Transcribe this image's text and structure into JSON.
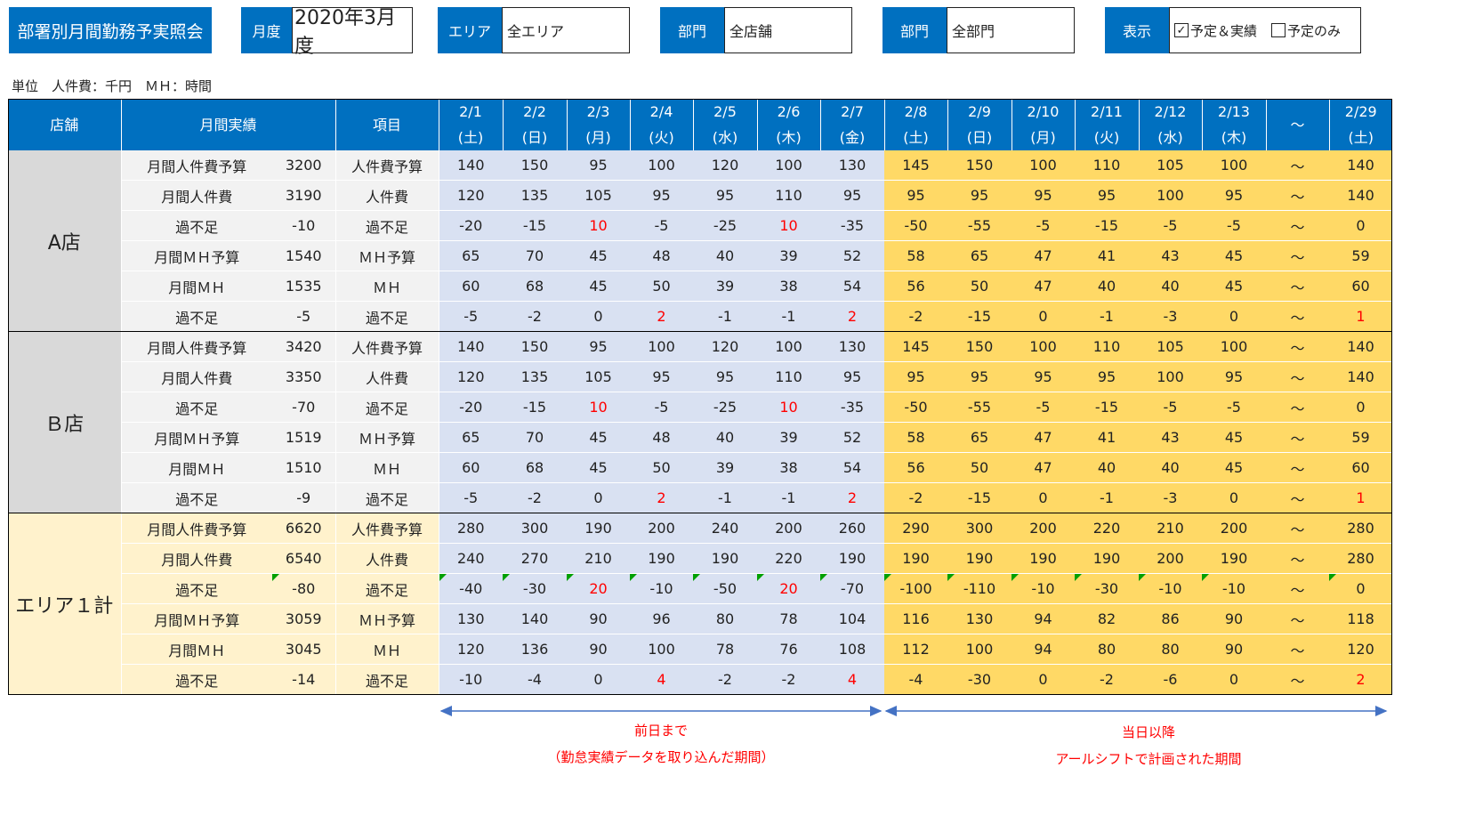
{
  "header": {
    "title": "部署別月間勤務予実照会",
    "month_label": "月度",
    "month_value": "2020年3月度",
    "area_label": "エリア",
    "area_value": "全エリア",
    "dept1_label": "部門",
    "dept1_value": "全店舗",
    "dept2_label": "部門",
    "dept2_value": "全部門",
    "display_label": "表示",
    "display_opt1": "予定＆実績",
    "display_opt1_mark": "✓",
    "display_opt2": "予定のみ"
  },
  "unit_text": "単位　人件費：千円　ＭＨ：時間",
  "table": {
    "col_store": "店舗",
    "col_monthly": "月間実績",
    "col_item": "項目",
    "dates": [
      {
        "d": "2/1",
        "w": "(土)"
      },
      {
        "d": "2/2",
        "w": "(日)"
      },
      {
        "d": "2/3",
        "w": "(月)"
      },
      {
        "d": "2/4",
        "w": "(火)"
      },
      {
        "d": "2/5",
        "w": "(水)"
      },
      {
        "d": "2/6",
        "w": "(木)"
      },
      {
        "d": "2/7",
        "w": "(金)"
      },
      {
        "d": "2/8",
        "w": "(土)"
      },
      {
        "d": "2/9",
        "w": "(日)"
      },
      {
        "d": "2/10",
        "w": "(月)"
      },
      {
        "d": "2/11",
        "w": "(火)"
      },
      {
        "d": "2/12",
        "w": "(水)"
      },
      {
        "d": "2/13",
        "w": "(木)"
      },
      {
        "d": "～",
        "w": ""
      },
      {
        "d": "2/29",
        "w": "(土)"
      }
    ],
    "groups": [
      {
        "store": "A店",
        "cls": "A",
        "rows": [
          {
            "label": "月間人件費予算",
            "total": "3200",
            "item": "人件費予算",
            "vals": [
              "140",
              "150",
              "95",
              "100",
              "120",
              "100",
              "130",
              "145",
              "150",
              "100",
              "110",
              "105",
              "100",
              "～",
              "140"
            ]
          },
          {
            "label": "月間人件費",
            "total": "3190",
            "item": "人件費",
            "vals": [
              "120",
              "135",
              "105",
              "95",
              "95",
              "110",
              "95",
              "95",
              "95",
              "95",
              "95",
              "100",
              "95",
              "～",
              "140"
            ]
          },
          {
            "label": "過不足",
            "total": "-10",
            "item": "過不足",
            "vals": [
              "-20",
              "-15",
              "10",
              "-5",
              "-25",
              "10",
              "-35",
              "-50",
              "-55",
              "-5",
              "-15",
              "-5",
              "-5",
              "～",
              "0"
            ]
          },
          {
            "label": "月間ＭＨ予算",
            "total": "1540",
            "item": "ＭＨ予算",
            "vals": [
              "65",
              "70",
              "45",
              "48",
              "40",
              "39",
              "52",
              "58",
              "65",
              "47",
              "41",
              "43",
              "45",
              "～",
              "59"
            ]
          },
          {
            "label": "月間ＭＨ",
            "total": "1535",
            "item": "ＭＨ",
            "vals": [
              "60",
              "68",
              "45",
              "50",
              "39",
              "38",
              "54",
              "56",
              "50",
              "47",
              "40",
              "40",
              "45",
              "～",
              "60"
            ]
          },
          {
            "label": "過不足",
            "total": "-5",
            "item": "過不足",
            "vals": [
              "-5",
              "-2",
              "0",
              "2",
              "-1",
              "-1",
              "2",
              "-2",
              "-15",
              "0",
              "-1",
              "-3",
              "0",
              "～",
              "1"
            ]
          }
        ]
      },
      {
        "store": "Ｂ店",
        "cls": "B",
        "rows": [
          {
            "label": "月間人件費予算",
            "total": "3420",
            "item": "人件費予算",
            "vals": [
              "140",
              "150",
              "95",
              "100",
              "120",
              "100",
              "130",
              "145",
              "150",
              "100",
              "110",
              "105",
              "100",
              "～",
              "140"
            ]
          },
          {
            "label": "月間人件費",
            "total": "3350",
            "item": "人件費",
            "vals": [
              "120",
              "135",
              "105",
              "95",
              "95",
              "110",
              "95",
              "95",
              "95",
              "95",
              "95",
              "100",
              "95",
              "～",
              "140"
            ]
          },
          {
            "label": "過不足",
            "total": "-70",
            "item": "過不足",
            "vals": [
              "-20",
              "-15",
              "10",
              "-5",
              "-25",
              "10",
              "-35",
              "-50",
              "-55",
              "-5",
              "-15",
              "-5",
              "-5",
              "～",
              "0"
            ]
          },
          {
            "label": "月間ＭＨ予算",
            "total": "1519",
            "item": "ＭＨ予算",
            "vals": [
              "65",
              "70",
              "45",
              "48",
              "40",
              "39",
              "52",
              "58",
              "65",
              "47",
              "41",
              "43",
              "45",
              "～",
              "59"
            ]
          },
          {
            "label": "月間ＭＨ",
            "total": "1510",
            "item": "ＭＨ",
            "vals": [
              "60",
              "68",
              "45",
              "50",
              "39",
              "38",
              "54",
              "56",
              "50",
              "47",
              "40",
              "40",
              "45",
              "～",
              "60"
            ]
          },
          {
            "label": "過不足",
            "total": "-9",
            "item": "過不足",
            "vals": [
              "-5",
              "-2",
              "0",
              "2",
              "-1",
              "-1",
              "2",
              "-2",
              "-15",
              "0",
              "-1",
              "-3",
              "0",
              "～",
              "1"
            ]
          }
        ]
      },
      {
        "store": "エリア１計",
        "cls": "T",
        "rows": [
          {
            "label": "月間人件費予算",
            "total": "6620",
            "item": "人件費予算",
            "vals": [
              "280",
              "300",
              "190",
              "200",
              "240",
              "200",
              "260",
              "290",
              "300",
              "200",
              "220",
              "210",
              "200",
              "～",
              "280"
            ]
          },
          {
            "label": "月間人件費",
            "total": "6540",
            "item": "人件費",
            "vals": [
              "240",
              "270",
              "210",
              "190",
              "190",
              "220",
              "190",
              "190",
              "190",
              "190",
              "190",
              "200",
              "190",
              "～",
              "280"
            ]
          },
          {
            "label": "過不足",
            "total": "-80",
            "item": "過不足",
            "flag": true,
            "vals": [
              "-40",
              "-30",
              "20",
              "-10",
              "-50",
              "20",
              "-70",
              "-100",
              "-110",
              "-10",
              "-30",
              "-10",
              "-10",
              "～",
              "0"
            ]
          },
          {
            "label": "月間ＭＨ予算",
            "total": "3059",
            "item": "ＭＨ予算",
            "vals": [
              "130",
              "140",
              "90",
              "96",
              "80",
              "78",
              "104",
              "116",
              "130",
              "94",
              "82",
              "86",
              "90",
              "～",
              "118"
            ]
          },
          {
            "label": "月間ＭＨ",
            "total": "3045",
            "item": "ＭＨ",
            "vals": [
              "120",
              "136",
              "90",
              "100",
              "78",
              "76",
              "108",
              "112",
              "100",
              "94",
              "80",
              "80",
              "90",
              "～",
              "120"
            ]
          },
          {
            "label": "過不足",
            "total": "-14",
            "item": "過不足",
            "vals": [
              "-10",
              "-4",
              "0",
              "4",
              "-2",
              "-2",
              "4",
              "-4",
              "-30",
              "0",
              "-2",
              "-6",
              "0",
              "～",
              "2"
            ]
          }
        ]
      }
    ]
  },
  "notes": {
    "past_line1": "前日まで",
    "past_line2": "（勤怠実績データを取り込んだ期間）",
    "future_line1": "当日以降",
    "future_line2": "アールシフトで計画された期間"
  },
  "colors": {
    "header_blue": "#0070c0",
    "past_bg": "#d9e1f2",
    "future_bg": "#ffd966",
    "total_bg": "#fff2cc",
    "store_bg": "#d9d9d9",
    "arrow": "#4472c4",
    "alert_red": "#ff0000"
  }
}
